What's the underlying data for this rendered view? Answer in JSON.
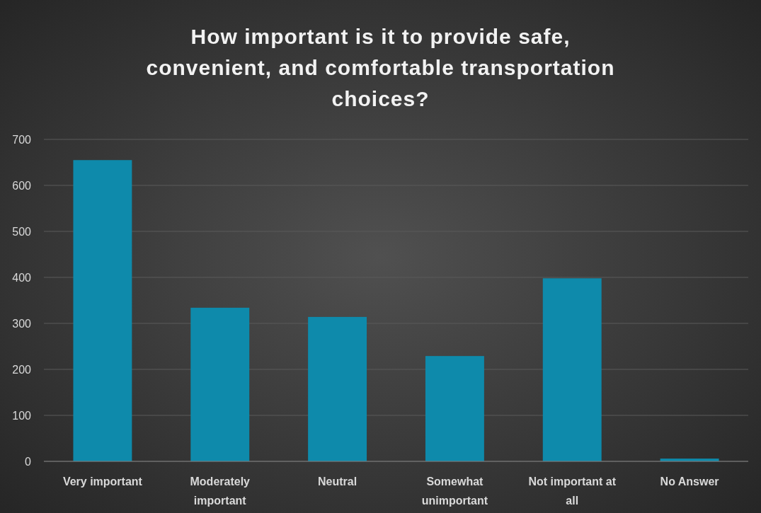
{
  "chart_data": {
    "type": "bar",
    "title": "How important is it to provide safe, convenient, and comfortable transportation choices?",
    "categories": [
      "Very important",
      "Moderately important",
      "Neutral",
      "Somewhat unimportant",
      "Not important at all",
      "No Answer"
    ],
    "values": [
      655,
      334,
      314,
      229,
      398,
      6
    ],
    "color": "#0e8aab",
    "ylim": [
      0,
      700
    ],
    "yticks": [
      0,
      100,
      200,
      300,
      400,
      500,
      600,
      700
    ],
    "grid": "y"
  }
}
